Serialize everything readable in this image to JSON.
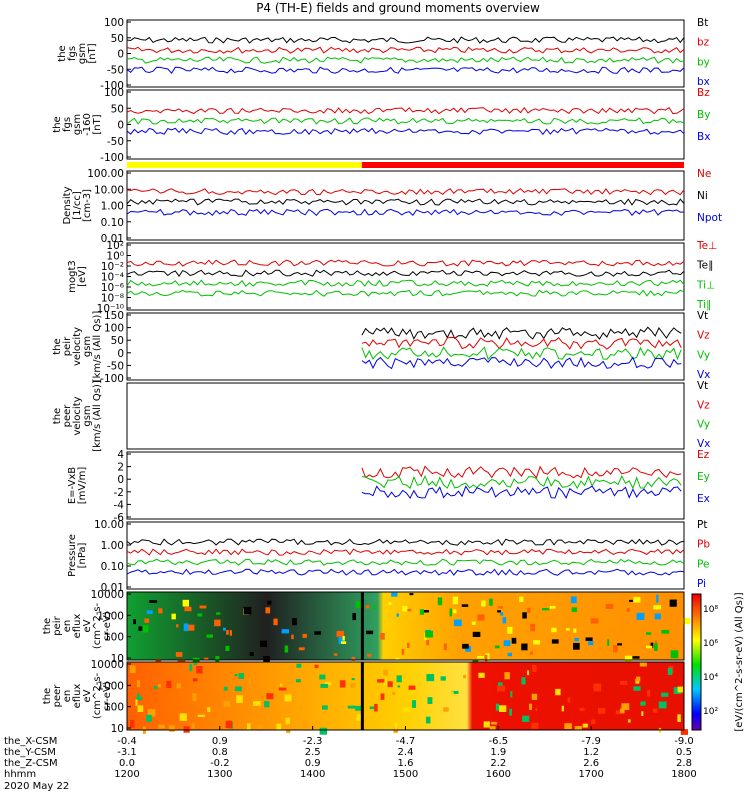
{
  "title": "P4 (TH-E) fields and ground moments overview",
  "chart_data": [
    {
      "type": "line",
      "ylabel": [
        "the",
        "fgs",
        "gsm",
        "[nT]"
      ],
      "yticks": [
        "100",
        "50",
        "0",
        "-50",
        "-100"
      ],
      "ylim": [
        -100,
        100
      ],
      "legend": [
        {
          "label": "Bt",
          "color": "#000000"
        },
        {
          "label": "bz",
          "color": "#e00000"
        },
        {
          "label": "by",
          "color": "#00c000"
        },
        {
          "label": "bx",
          "color": "#0000e0"
        }
      ]
    },
    {
      "type": "line",
      "ylabel": [
        "the",
        "fgs",
        "gsm",
        "-160",
        "[nT]"
      ],
      "yticks": [
        "100",
        "50",
        "0",
        "-50",
        "-100"
      ],
      "ylim": [
        -120,
        120
      ],
      "legend": [
        {
          "label": "Bz",
          "color": "#e00000"
        },
        {
          "label": "By",
          "color": "#00c000"
        },
        {
          "label": "Bx",
          "color": "#0000e0"
        }
      ]
    },
    {
      "type": "bar",
      "name": "mode-bar",
      "segments": [
        {
          "from": 1200,
          "to": 1453,
          "color": "#ffff00"
        },
        {
          "from": 1453,
          "to": 1800,
          "color": "#ff0000"
        }
      ]
    },
    {
      "type": "line",
      "ylabel": [
        "Density",
        "[1/cc]",
        "[cm-3]"
      ],
      "yticks": [
        "100.00",
        "10.00",
        "1.00",
        "0.10",
        "0.01"
      ],
      "ylim": [
        0.008,
        300
      ],
      "scale": "log",
      "legend": [
        {
          "label": "Ne",
          "color": "#e00000"
        },
        {
          "label": "Ni",
          "color": "#000000"
        },
        {
          "label": "Npot",
          "color": "#0000e0"
        }
      ]
    },
    {
      "type": "line",
      "ylabel": [
        "mogt3",
        "[eV]"
      ],
      "yticks": [
        "10²",
        "10⁰",
        "10⁻²",
        "10⁻⁴",
        "10⁻⁶",
        "10⁻⁸",
        "10⁻¹⁰"
      ],
      "scale": "log",
      "legend": [
        {
          "label": "Te⊥",
          "color": "#e00000"
        },
        {
          "label": "Te∥",
          "color": "#000000"
        },
        {
          "label": "Ti⊥",
          "color": "#00c000"
        },
        {
          "label": "Ti∥",
          "color": "#00c000"
        }
      ]
    },
    {
      "type": "line",
      "ylabel": [
        "the",
        "peir",
        "velocity",
        "gsm",
        "[km/s (All Qs)]"
      ],
      "yticks": [
        "150",
        "100",
        "50",
        "0",
        "-50",
        "-100"
      ],
      "ylim": [
        -100,
        150
      ],
      "legend": [
        {
          "label": "Vt",
          "color": "#000000"
        },
        {
          "label": "Vz",
          "color": "#e00000"
        },
        {
          "label": "Vy",
          "color": "#00c000"
        },
        {
          "label": "Vx",
          "color": "#0000e0"
        }
      ]
    },
    {
      "type": "line",
      "ylabel": [
        "the",
        "peer",
        "velocity",
        "gsm",
        "[km/s (All Qs)]"
      ],
      "yticks": [],
      "legend": [
        {
          "label": "Vt",
          "color": "#000000"
        },
        {
          "label": "Vz",
          "color": "#e00000"
        },
        {
          "label": "Vy",
          "color": "#00c000"
        },
        {
          "label": "Vx",
          "color": "#0000e0"
        }
      ]
    },
    {
      "type": "line",
      "ylabel": [
        "E=-VxB",
        "[mV/m]"
      ],
      "yticks": [
        "4",
        "2",
        "0",
        "-2",
        "-4",
        "-6"
      ],
      "ylim": [
        -6,
        4
      ],
      "legend": [
        {
          "label": "Ez",
          "color": "#e00000"
        },
        {
          "label": "Ey",
          "color": "#00c000"
        },
        {
          "label": "Ex",
          "color": "#0000e0"
        }
      ]
    },
    {
      "type": "line",
      "ylabel": [
        "Pressure",
        "[nPa]"
      ],
      "yticks": [
        "10.00",
        "1.00",
        "0.10",
        "0.01"
      ],
      "ylim": [
        0.004,
        20
      ],
      "scale": "log",
      "legend": [
        {
          "label": "Pt",
          "color": "#000000"
        },
        {
          "label": "Pb",
          "color": "#e00000"
        },
        {
          "label": "Pe",
          "color": "#00c000"
        },
        {
          "label": "Pi",
          "color": "#0000e0"
        }
      ]
    },
    {
      "type": "heatmap",
      "ylabel": [
        "the",
        "peir",
        "en",
        "eflux",
        "eV",
        "(cm^2-s-",
        "sr-eV)"
      ],
      "yticks": [
        "10000",
        "1000",
        "100",
        "10"
      ],
      "scale": "log"
    },
    {
      "type": "heatmap",
      "ylabel": [
        "the",
        "peer",
        "en",
        "eflux",
        "eV",
        "(cm^2-s-",
        "sr-eV)"
      ],
      "yticks": [
        "10000",
        "1000",
        "100",
        "10"
      ],
      "scale": "log"
    }
  ],
  "colorbar": {
    "label": "[eV/(cm^2-s-sr-eV) (All Qs)]",
    "ticks": [
      "10⁸",
      "10⁶",
      "10⁴",
      "10²"
    ]
  },
  "xaxis": {
    "rows": [
      {
        "label": "the_X-CSM",
        "values": [
          "-0.4",
          "0.9",
          "-2.3",
          "-4.7",
          "-6.5",
          "-7.9",
          "-9.0"
        ]
      },
      {
        "label": "the_Y-CSM",
        "values": [
          "-3.1",
          "0.8",
          "2.5",
          "2.4",
          "1.9",
          "1.2",
          "0.5"
        ]
      },
      {
        "label": "the_Z-CSM",
        "values": [
          "0.0",
          "-0.2",
          "0.9",
          "1.6",
          "2.2",
          "2.6",
          "2.8"
        ]
      },
      {
        "label": "hhmm",
        "values": [
          "1200",
          "1300",
          "1400",
          "1500",
          "1600",
          "1700",
          "1800"
        ]
      }
    ],
    "date": "2020 May 22",
    "range": [
      1200,
      1800
    ]
  }
}
